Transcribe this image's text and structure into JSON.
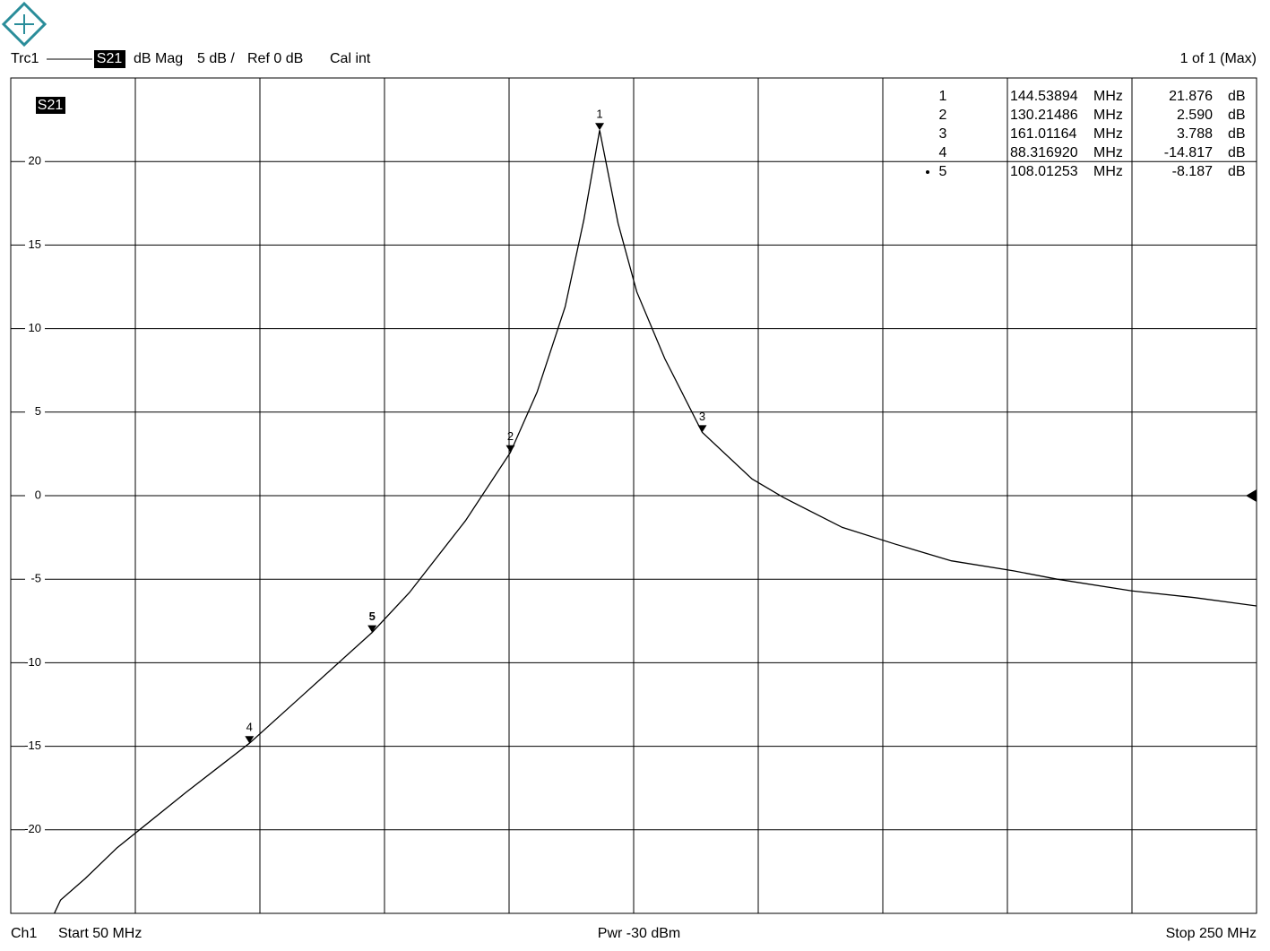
{
  "chart_data": {
    "type": "line",
    "header": {
      "trace": "Trc1",
      "param": "S21",
      "format": "dB Mag",
      "scale": "5 dB /",
      "ref": "Ref 0 dB",
      "cal": "Cal int",
      "page": "1 of 1 (Max)"
    },
    "trace_label": "S21",
    "footer": {
      "channel": "Ch1",
      "start": "Start  50 MHz",
      "power": "Pwr  -30 dBm",
      "stop": "Stop  250 MHz"
    },
    "xlim": [
      50,
      250
    ],
    "xticks": [
      50,
      70,
      90,
      110,
      130,
      150,
      170,
      190,
      210,
      230,
      250
    ],
    "ylim": [
      -25,
      25
    ],
    "yticks": [
      -20,
      -15,
      -10,
      -5,
      0,
      5,
      10,
      15,
      20
    ],
    "grid": true,
    "x": [
      57,
      58,
      62,
      67,
      71,
      78,
      88.31692,
      97,
      108.01253,
      114,
      123,
      130.21486,
      134.5,
      139,
      142,
      144.53894,
      147.5,
      150.5,
      155,
      161.01164,
      169,
      174,
      183.5,
      192,
      201,
      211,
      218,
      230,
      240,
      250
    ],
    "series": [
      {
        "name": "S21",
        "color": "#000000",
        "values": [
          -25,
          -24.2,
          -22.9,
          -21.1,
          -19.9,
          -17.8,
          -14.817,
          -11.9,
          -8.187,
          -5.8,
          -1.5,
          2.59,
          6.2,
          11.3,
          16.5,
          21.876,
          16.3,
          12.2,
          8.2,
          3.788,
          1.0,
          -0.1,
          -1.9,
          -2.9,
          -3.9,
          -4.5,
          -5.0,
          -5.7,
          -6.1,
          -6.6
        ]
      }
    ],
    "freq_unit": "MHz",
    "value_unit": "dB",
    "markers": [
      {
        "label": "1",
        "x": 144.53894,
        "x_label": "144.53894",
        "value": 21.876,
        "value_label": "21.876",
        "active": false
      },
      {
        "label": "2",
        "x": 130.21486,
        "x_label": "130.21486",
        "value": 2.59,
        "value_label": "2.590",
        "active": false
      },
      {
        "label": "3",
        "x": 161.01164,
        "x_label": "161.01164",
        "value": 3.788,
        "value_label": "3.788",
        "active": false
      },
      {
        "label": "4",
        "x": 88.31692,
        "x_label": "88.316920",
        "value": -14.817,
        "value_label": "-14.817",
        "active": false
      },
      {
        "label": "5",
        "x": 108.01253,
        "x_label": "108.01253",
        "value": -8.187,
        "value_label": "-8.187",
        "active": true
      }
    ]
  }
}
